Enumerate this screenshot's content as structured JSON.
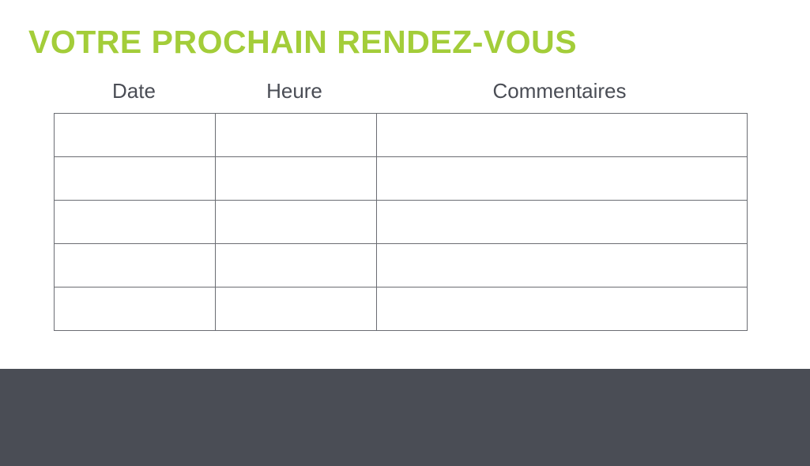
{
  "title": "VOTRE PROCHAIN RENDEZ-VOUS",
  "colors": {
    "accent": "#a3cd39",
    "footer": "#4a4d55",
    "text": "#4a4d55"
  },
  "table": {
    "headers": [
      "Date",
      "Heure",
      "Commentaires"
    ],
    "rows": [
      [
        "",
        "",
        ""
      ],
      [
        "",
        "",
        ""
      ],
      [
        "",
        "",
        ""
      ],
      [
        "",
        "",
        ""
      ],
      [
        "",
        "",
        ""
      ]
    ]
  }
}
